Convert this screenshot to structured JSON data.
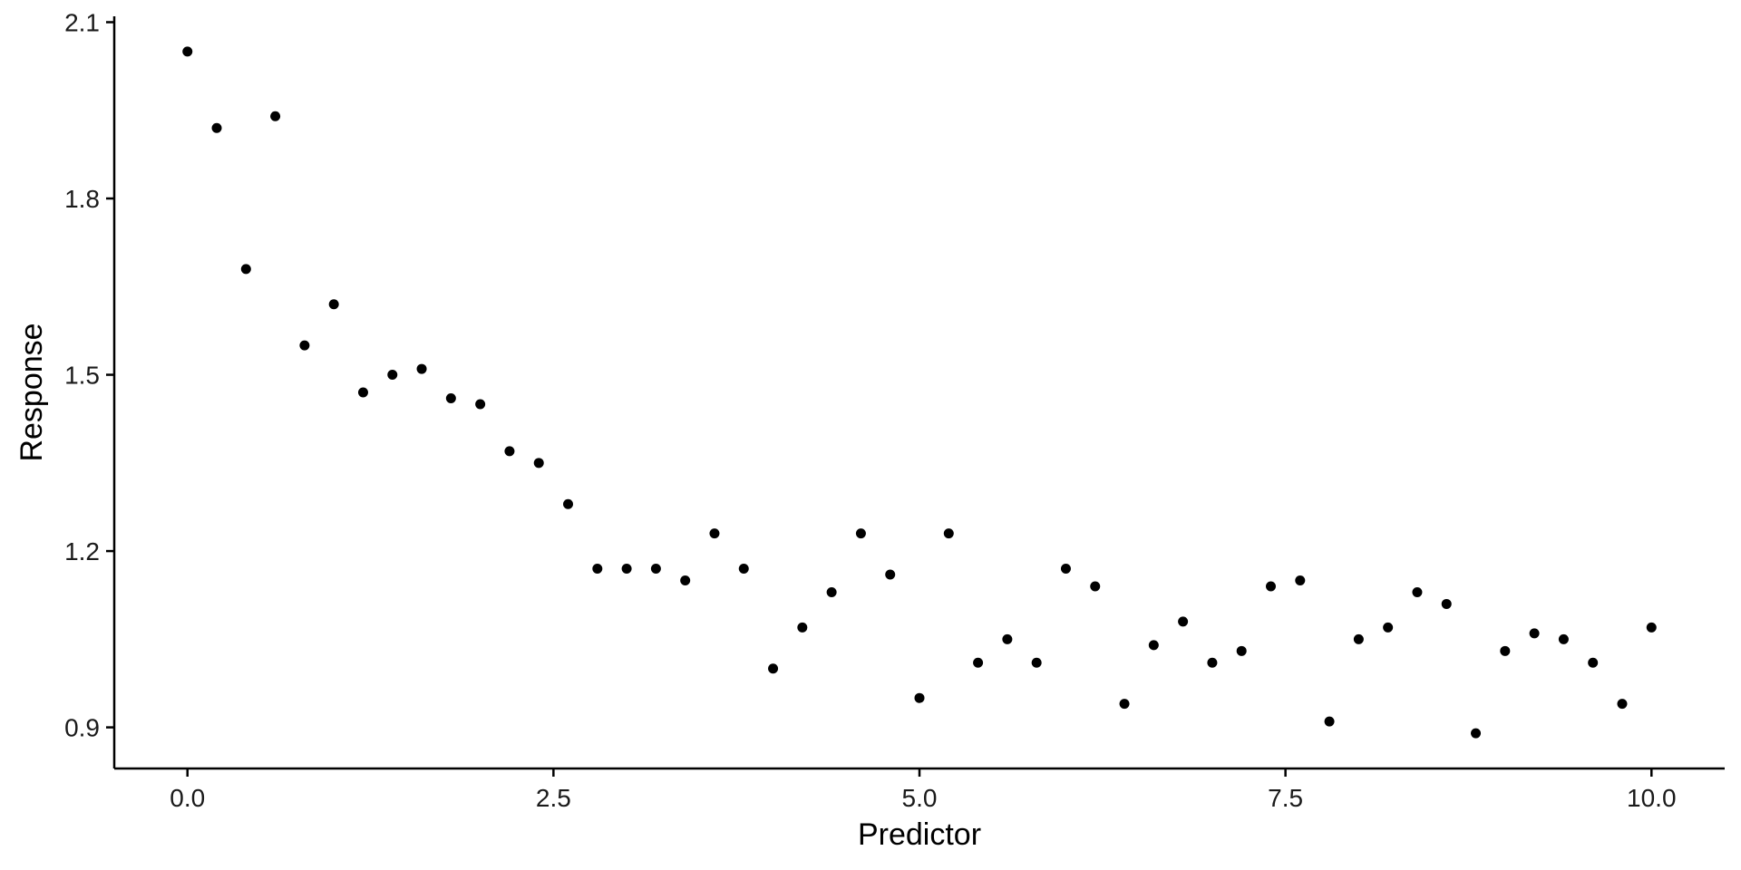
{
  "chart_data": {
    "type": "scatter",
    "title": "",
    "xlabel": "Predictor",
    "ylabel": "Response",
    "xlim": [
      -0.5,
      10.5
    ],
    "ylim": [
      0.83,
      2.11
    ],
    "xticks": [
      0.0,
      2.5,
      5.0,
      7.5,
      10.0
    ],
    "xtick_labels": [
      "0.0",
      "2.5",
      "5.0",
      "7.5",
      "10.0"
    ],
    "yticks": [
      0.9,
      1.2,
      1.5,
      1.8,
      2.1
    ],
    "ytick_labels": [
      "0.9",
      "1.2",
      "1.5",
      "1.8",
      "2.1"
    ],
    "grid": false,
    "legend": "none",
    "point_color": "#000000",
    "series": [
      {
        "x": [
          0.0,
          0.2,
          0.4,
          0.6,
          0.8,
          1.0,
          1.2,
          1.4,
          1.6,
          1.8,
          2.0,
          2.2,
          2.4,
          2.6,
          2.8,
          3.0,
          3.2,
          3.4,
          3.6,
          3.8,
          4.0,
          4.2,
          4.4,
          4.6,
          4.8,
          5.0,
          5.2,
          5.4,
          5.6,
          5.8,
          6.0,
          6.2,
          6.4,
          6.6,
          6.8,
          7.0,
          7.2,
          7.4,
          7.6,
          7.8,
          8.0,
          8.2,
          8.4,
          8.6,
          8.8,
          9.0,
          9.2,
          9.4,
          9.6,
          9.8,
          10.0
        ],
        "y": [
          2.05,
          1.92,
          1.68,
          1.94,
          1.55,
          1.62,
          1.47,
          1.5,
          1.51,
          1.46,
          1.45,
          1.37,
          1.35,
          1.28,
          1.17,
          1.17,
          1.17,
          1.15,
          1.23,
          1.17,
          1.0,
          1.07,
          1.13,
          1.23,
          1.16,
          0.95,
          1.23,
          1.01,
          1.05,
          1.01,
          1.17,
          1.14,
          0.94,
          1.04,
          1.08,
          1.01,
          1.03,
          1.14,
          1.15,
          0.91,
          1.05,
          1.07,
          1.13,
          1.11,
          0.89,
          1.03,
          1.06,
          1.05,
          1.01,
          0.94,
          1.07
        ]
      }
    ]
  }
}
